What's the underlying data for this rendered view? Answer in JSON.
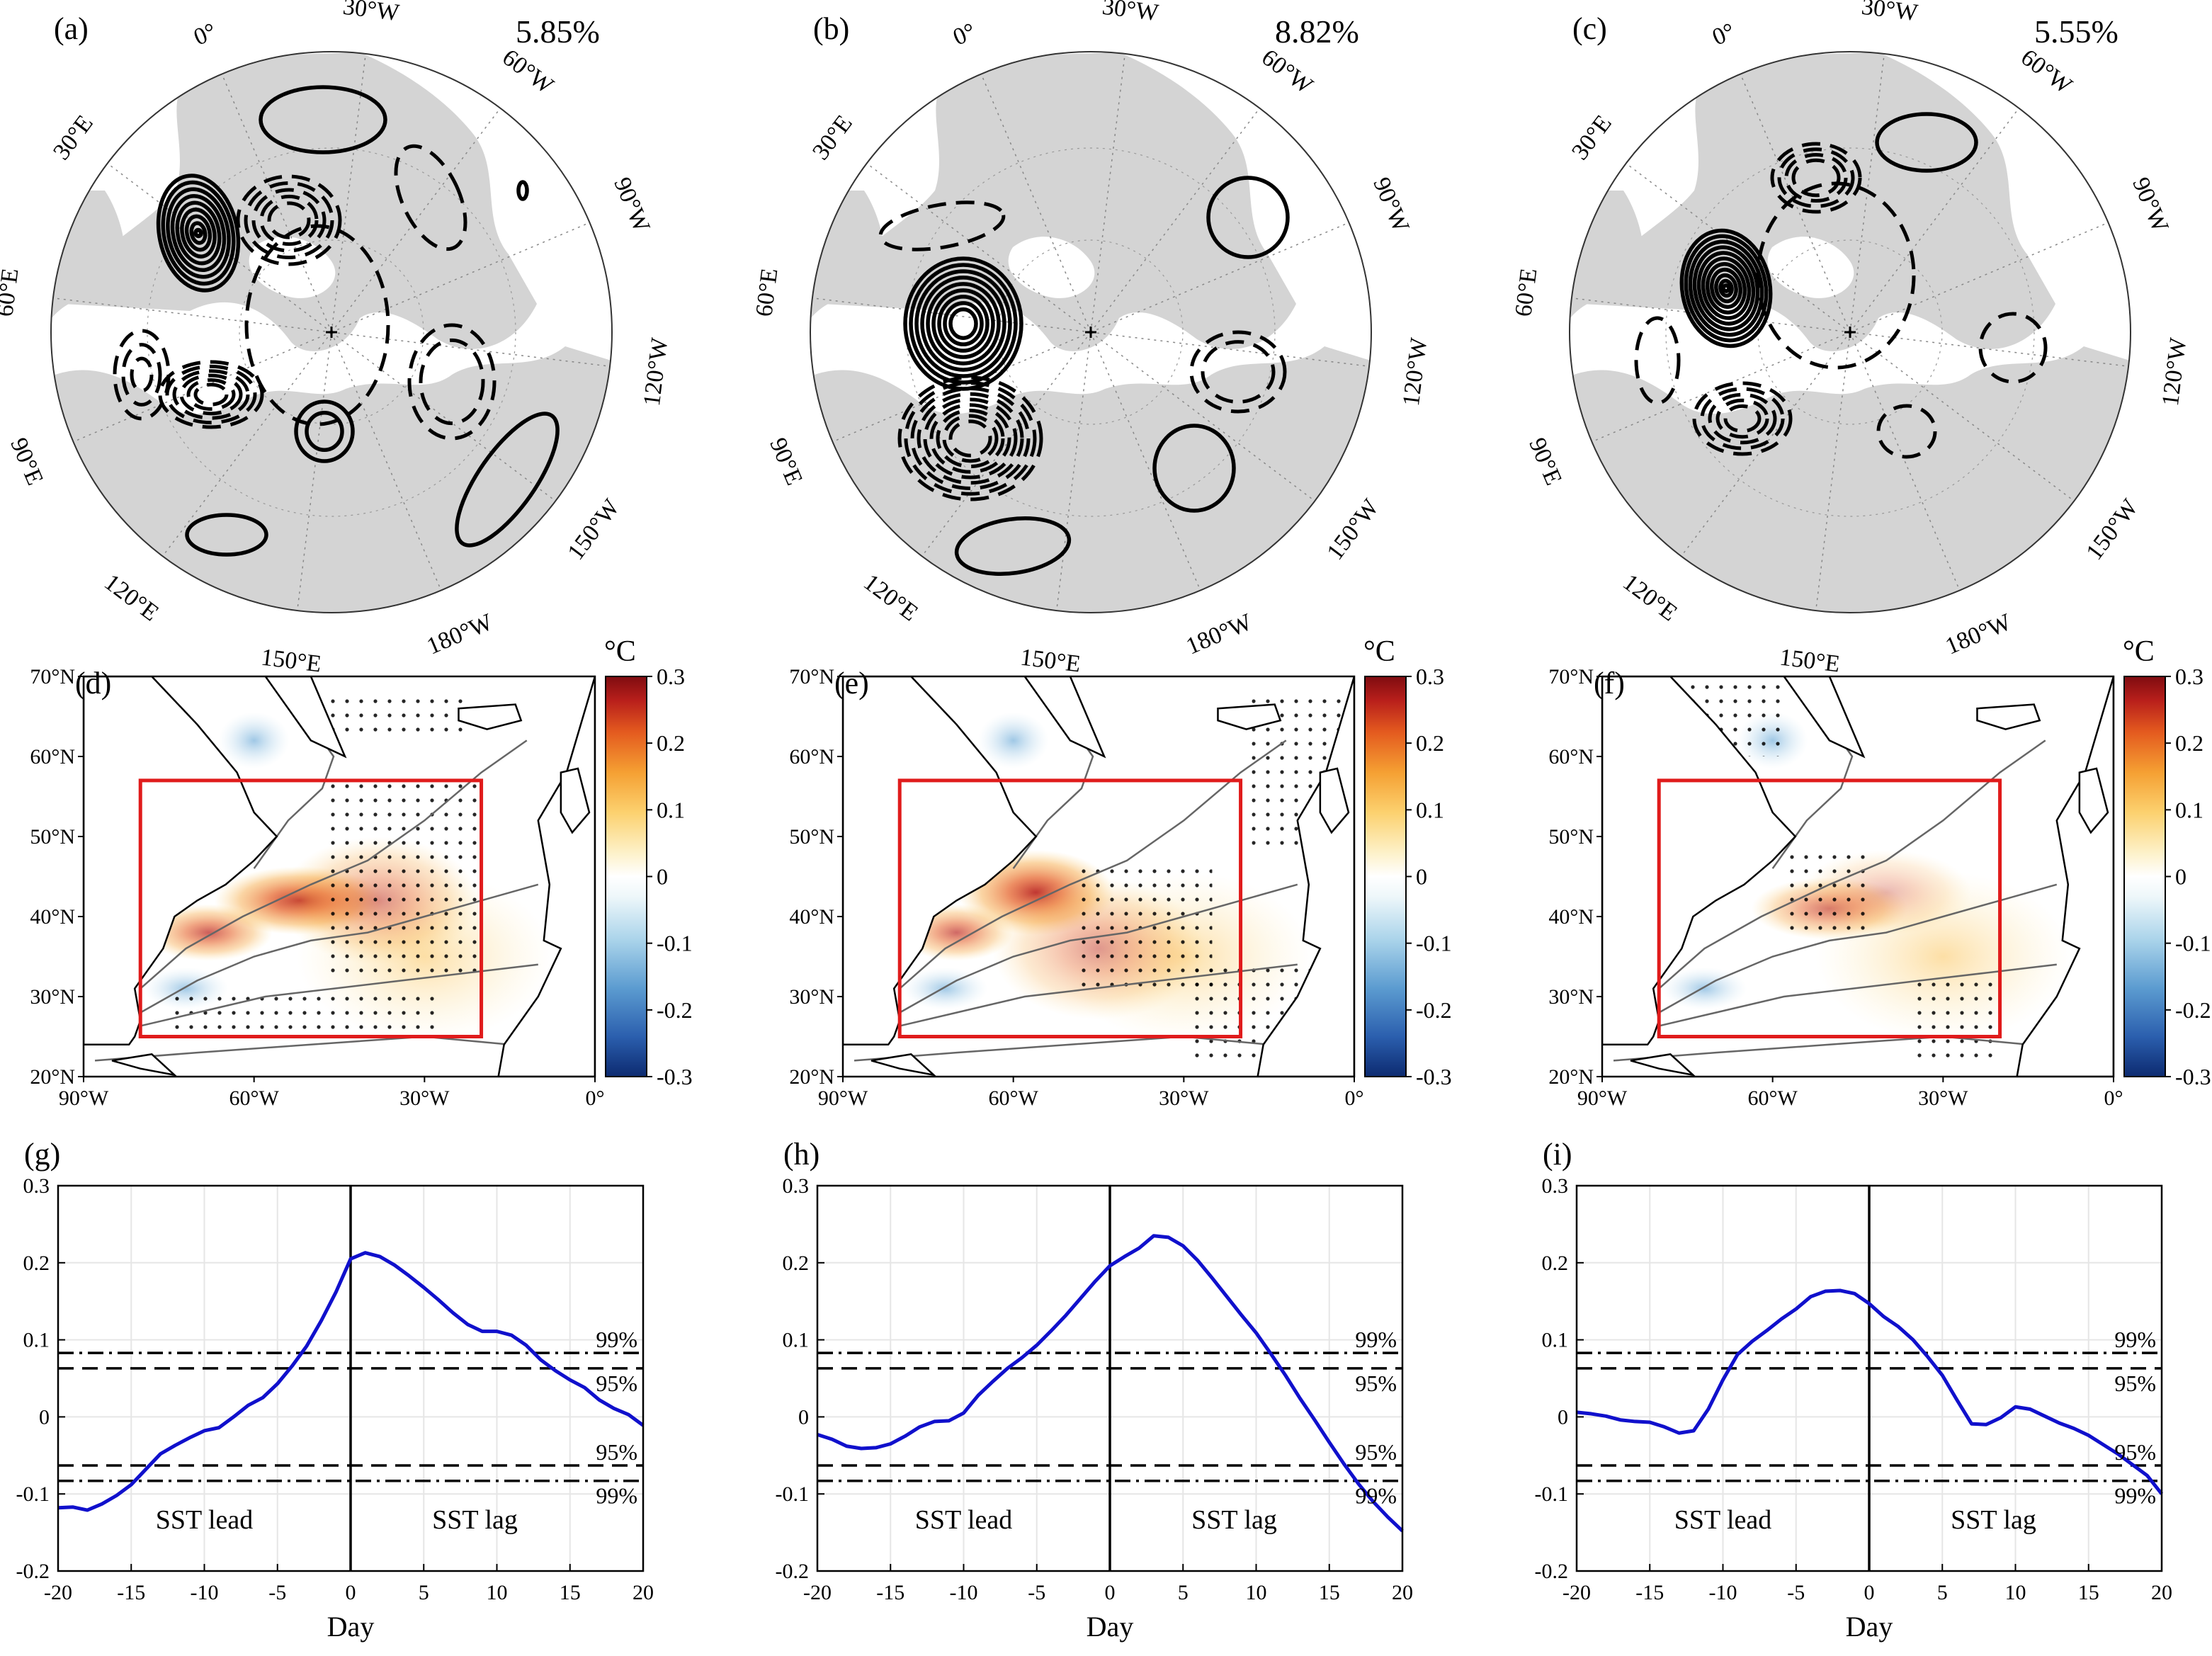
{
  "polar_panels": [
    {
      "label": "(a)",
      "variance": "5.85%"
    },
    {
      "label": "(b)",
      "variance": "8.82%"
    },
    {
      "label": "(c)",
      "variance": "5.55%"
    }
  ],
  "meridian_labels": [
    "0°",
    "30°E",
    "60°E",
    "90°E",
    "120°E",
    "150°E",
    "180°W",
    "150°W",
    "120°W",
    "90°W",
    "60°W",
    "30°W"
  ],
  "sst_panels": [
    {
      "label": "(d)"
    },
    {
      "label": "(e)"
    },
    {
      "label": "(f)"
    }
  ],
  "map_axes": {
    "lat_ticks": [
      "20°N",
      "30°N",
      "40°N",
      "50°N",
      "60°N",
      "70°N"
    ],
    "lon_ticks": [
      "90°W",
      "60°W",
      "30°W",
      "0°"
    ]
  },
  "colorbar": {
    "unit": "°C",
    "ticks": [
      "0.3",
      "0.2",
      "0.1",
      "0",
      "-0.1",
      "-0.2",
      "-0.3"
    ],
    "colors": [
      "#0c2a70",
      "#2b5fae",
      "#5b9bd0",
      "#a9d3ea",
      "#e7f3f8",
      "#ffffff",
      "#fdf1c8",
      "#fcd16f",
      "#f5a033",
      "#e45b1f",
      "#b81f1b",
      "#7f0c10"
    ]
  },
  "chart_data": [
    {
      "type": "line",
      "panel_label": "(g)",
      "xlabel": "Day",
      "ylabel": "",
      "xlim": [
        -20,
        20
      ],
      "ylim": [
        -0.2,
        0.3
      ],
      "xticks": [
        "-20",
        "-15",
        "-10",
        "-5",
        "0",
        "5",
        "10",
        "15",
        "20"
      ],
      "yticks": [
        "0.3",
        "0.2",
        "0.1",
        "0",
        "-0.1",
        "-0.2"
      ],
      "grid": true,
      "annotations": {
        "lead": "SST lead",
        "lag": "SST lag",
        "sig99_upper": "99%",
        "sig95_upper": "95%",
        "sig95_lower": "95%",
        "sig99_lower": "99%"
      },
      "significance": {
        "p99": 0.083,
        "p95": 0.063
      },
      "x": [
        -20,
        -19,
        -18,
        -17,
        -16,
        -15,
        -14,
        -13,
        -12,
        -11,
        -10,
        -9,
        -8,
        -7,
        -6,
        -5,
        -4,
        -3,
        -2,
        -1,
        0,
        1,
        2,
        3,
        4,
        5,
        6,
        7,
        8,
        9,
        10,
        11,
        12,
        13,
        14,
        15,
        16,
        17,
        18,
        19,
        20
      ],
      "series": [
        {
          "name": "correlation",
          "color": "#1010cc",
          "values": [
            -0.118,
            -0.117,
            -0.121,
            -0.113,
            -0.102,
            -0.088,
            -0.068,
            -0.048,
            -0.037,
            -0.027,
            -0.018,
            -0.014,
            0.0,
            0.015,
            0.025,
            0.043,
            0.066,
            0.092,
            0.125,
            0.162,
            0.205,
            0.213,
            0.208,
            0.197,
            0.183,
            0.168,
            0.152,
            0.135,
            0.12,
            0.111,
            0.111,
            0.106,
            0.093,
            0.074,
            0.06,
            0.048,
            0.038,
            0.022,
            0.011,
            0.003,
            -0.011
          ]
        }
      ]
    },
    {
      "type": "line",
      "panel_label": "(h)",
      "xlabel": "Day",
      "ylabel": "",
      "xlim": [
        -20,
        20
      ],
      "ylim": [
        -0.2,
        0.3
      ],
      "xticks": [
        "-20",
        "-15",
        "-10",
        "-5",
        "0",
        "5",
        "10",
        "15",
        "20"
      ],
      "yticks": [
        "0.3",
        "0.2",
        "0.1",
        "0",
        "-0.1",
        "-0.2"
      ],
      "grid": true,
      "annotations": {
        "lead": "SST lead",
        "lag": "SST lag",
        "sig99_upper": "99%",
        "sig95_upper": "95%",
        "sig95_lower": "95%",
        "sig99_lower": "99%"
      },
      "significance": {
        "p99": 0.083,
        "p95": 0.063
      },
      "x": [
        -20,
        -19,
        -18,
        -17,
        -16,
        -15,
        -14,
        -13,
        -12,
        -11,
        -10,
        -9,
        -8,
        -7,
        -6,
        -5,
        -4,
        -3,
        -2,
        -1,
        0,
        1,
        2,
        3,
        4,
        5,
        6,
        7,
        8,
        9,
        10,
        11,
        12,
        13,
        14,
        15,
        16,
        17,
        18,
        19,
        20
      ],
      "series": [
        {
          "name": "correlation",
          "color": "#1010cc",
          "values": [
            -0.023,
            -0.029,
            -0.038,
            -0.041,
            -0.04,
            -0.035,
            -0.025,
            -0.013,
            -0.006,
            -0.005,
            0.005,
            0.028,
            0.046,
            0.063,
            0.077,
            0.093,
            0.112,
            0.132,
            0.154,
            0.176,
            0.196,
            0.208,
            0.219,
            0.235,
            0.233,
            0.222,
            0.203,
            0.18,
            0.156,
            0.132,
            0.109,
            0.082,
            0.054,
            0.024,
            -0.004,
            -0.033,
            -0.061,
            -0.087,
            -0.11,
            -0.13,
            -0.148
          ]
        }
      ]
    },
    {
      "type": "line",
      "panel_label": "(i)",
      "xlabel": "Day",
      "ylabel": "",
      "xlim": [
        -20,
        20
      ],
      "ylim": [
        -0.2,
        0.3
      ],
      "xticks": [
        "-20",
        "-15",
        "-10",
        "-5",
        "0",
        "5",
        "10",
        "15",
        "20"
      ],
      "yticks": [
        "0.3",
        "0.2",
        "0.1",
        "0",
        "-0.1",
        "-0.2"
      ],
      "grid": true,
      "annotations": {
        "lead": "SST lead",
        "lag": "SST lag",
        "sig99_upper": "99%",
        "sig95_upper": "95%",
        "sig95_lower": "95%",
        "sig99_lower": "99%"
      },
      "significance": {
        "p99": 0.083,
        "p95": 0.063
      },
      "x": [
        -20,
        -19,
        -18,
        -17,
        -16,
        -15,
        -14,
        -13,
        -12,
        -11,
        -10,
        -9,
        -8,
        -7,
        -6,
        -5,
        -4,
        -3,
        -2,
        -1,
        0,
        1,
        2,
        3,
        4,
        5,
        6,
        7,
        8,
        9,
        10,
        11,
        12,
        13,
        14,
        15,
        16,
        17,
        18,
        19,
        20
      ],
      "series": [
        {
          "name": "correlation",
          "color": "#1010cc",
          "values": [
            0.006,
            0.004,
            0.001,
            -0.004,
            -0.006,
            -0.007,
            -0.013,
            -0.021,
            -0.018,
            0.01,
            0.048,
            0.081,
            0.098,
            0.112,
            0.127,
            0.14,
            0.156,
            0.163,
            0.164,
            0.16,
            0.147,
            0.13,
            0.117,
            0.1,
            0.078,
            0.054,
            0.022,
            -0.009,
            -0.01,
            -0.001,
            0.013,
            0.01,
            0.001,
            -0.008,
            -0.015,
            -0.024,
            -0.036,
            -0.048,
            -0.062,
            -0.076,
            -0.1
          ]
        }
      ]
    }
  ]
}
